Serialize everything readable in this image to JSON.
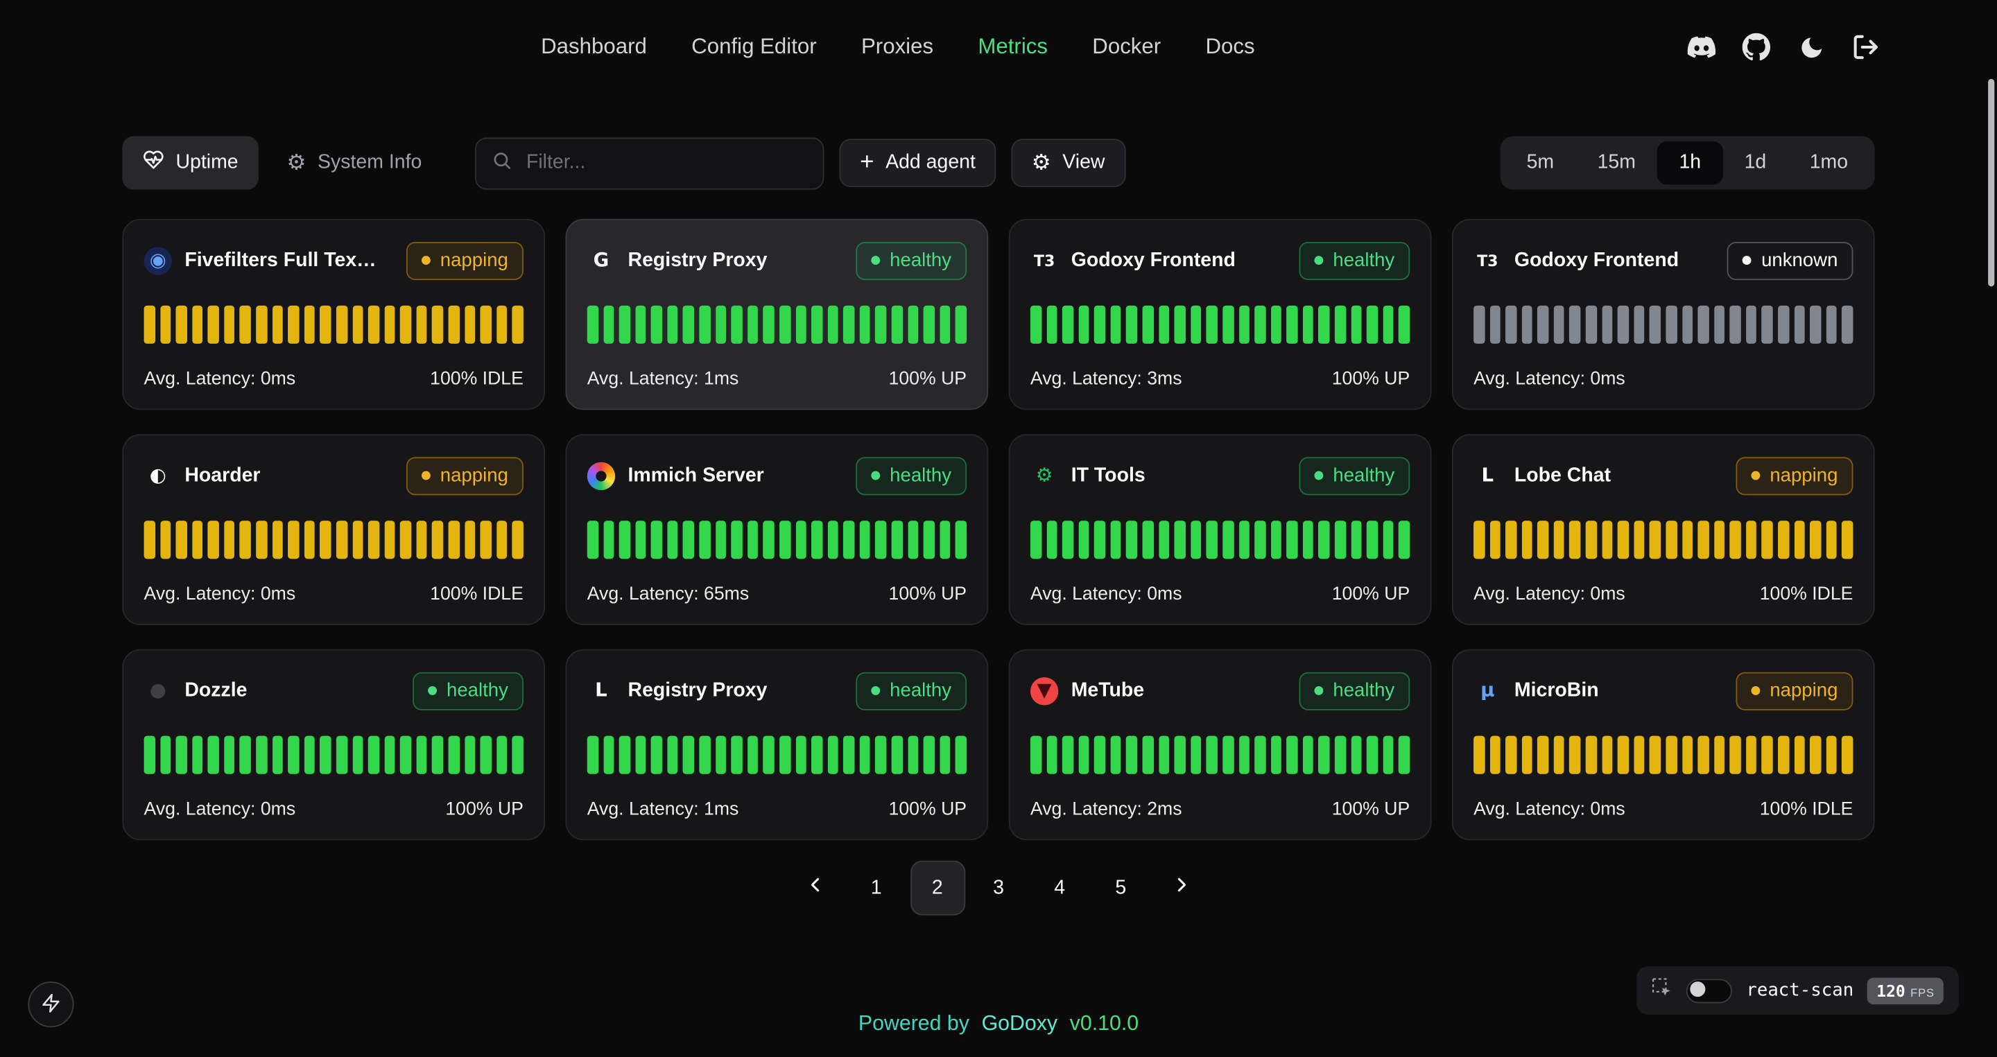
{
  "nav": {
    "items": [
      {
        "label": "Dashboard",
        "active": false
      },
      {
        "label": "Config Editor",
        "active": false
      },
      {
        "label": "Proxies",
        "active": false
      },
      {
        "label": "Metrics",
        "active": true
      },
      {
        "label": "Docker",
        "active": false
      },
      {
        "label": "Docs",
        "active": false
      }
    ],
    "active_color": "#4ade80"
  },
  "toolbar": {
    "uptime_tab": "Uptime",
    "system_info_tab": "System Info",
    "filter_placeholder": "Filter...",
    "add_agent": "Add agent",
    "view": "View",
    "ranges": [
      {
        "label": "5m",
        "active": false
      },
      {
        "label": "15m",
        "active": false
      },
      {
        "label": "1h",
        "active": true
      },
      {
        "label": "1d",
        "active": false
      },
      {
        "label": "1mo",
        "active": false
      }
    ]
  },
  "bars_per_card": 24,
  "status_styles": {
    "healthy": {
      "text": "#4ade80",
      "dot": "#4ade80",
      "bg": "rgba(34,197,94,0.10)",
      "border": "rgba(34,197,94,0.45)",
      "bar": "#32d74b"
    },
    "napping": {
      "text": "#f0b429",
      "dot": "#f0b429",
      "bg": "rgba(180,120,10,0.13)",
      "border": "rgba(202,138,4,0.55)",
      "bar": "#e3b50e"
    },
    "unknown": {
      "text": "#fafafa",
      "dot": "#fafafa",
      "bg": "transparent",
      "border": "#52525b",
      "bar": "#82868e"
    }
  },
  "cards": [
    {
      "title": "Fivefilters Full Tex…",
      "status": "napping",
      "latency": "Avg. Latency: 0ms",
      "uptime": "100% IDLE",
      "highlighted": false,
      "icon": {
        "name": "fivefilters-icon",
        "glyph": "◉",
        "fg": "#60a5fa",
        "bg": "#172554",
        "round": true
      }
    },
    {
      "title": "Registry Proxy",
      "status": "healthy",
      "latency": "Avg. Latency: 1ms",
      "uptime": "100% UP",
      "highlighted": true,
      "icon": {
        "name": "registry-proxy-icon",
        "glyph": "G",
        "fg": "#fafafa"
      }
    },
    {
      "title": "Godoxy Frontend",
      "status": "healthy",
      "latency": "Avg. Latency: 3ms",
      "uptime": "100% UP",
      "highlighted": false,
      "icon": {
        "name": "godoxy-frontend-icon",
        "glyph": "T3",
        "fg": "#fafafa"
      }
    },
    {
      "title": "Godoxy Frontend",
      "status": "unknown",
      "latency": "Avg. Latency: 0ms",
      "uptime": "",
      "highlighted": false,
      "icon": {
        "name": "godoxy-frontend-icon",
        "glyph": "T3",
        "fg": "#fafafa"
      }
    },
    {
      "title": "Hoarder",
      "status": "napping",
      "latency": "Avg. Latency: 0ms",
      "uptime": "100% IDLE",
      "highlighted": false,
      "icon": {
        "name": "hoarder-icon",
        "glyph": "◐",
        "fg": "#fafafa"
      }
    },
    {
      "title": "Immich Server",
      "status": "healthy",
      "latency": "Avg. Latency: 65ms",
      "uptime": "100% UP",
      "highlighted": false,
      "icon": {
        "name": "immich-icon",
        "conic": true
      }
    },
    {
      "title": "IT Tools",
      "status": "healthy",
      "latency": "Avg. Latency: 0ms",
      "uptime": "100% UP",
      "highlighted": false,
      "icon": {
        "name": "it-tools-icon",
        "glyph": "⚙",
        "fg": "#22c55e"
      }
    },
    {
      "title": "Lobe Chat",
      "status": "napping",
      "latency": "Avg. Latency: 0ms",
      "uptime": "100% IDLE",
      "highlighted": false,
      "icon": {
        "name": "lobe-chat-icon",
        "glyph": "L",
        "fg": "#fafafa"
      }
    },
    {
      "title": "Dozzle",
      "status": "healthy",
      "latency": "Avg. Latency: 0ms",
      "uptime": "100% UP",
      "highlighted": false,
      "icon": {
        "name": "dozzle-icon",
        "glyph": "●",
        "fg": "#3f3f46"
      }
    },
    {
      "title": "Registry Proxy",
      "status": "healthy",
      "latency": "Avg. Latency: 1ms",
      "uptime": "100% UP",
      "highlighted": false,
      "icon": {
        "name": "registry-proxy-icon",
        "glyph": "L",
        "fg": "#fafafa"
      }
    },
    {
      "title": "MeTube",
      "status": "healthy",
      "latency": "Avg. Latency: 2ms",
      "uptime": "100% UP",
      "highlighted": false,
      "icon": {
        "name": "metube-icon",
        "glyph": "▼",
        "fg": "#450a0a",
        "bg": "#ef4444",
        "round": true
      }
    },
    {
      "title": "MicroBin",
      "status": "napping",
      "latency": "Avg. Latency: 0ms",
      "uptime": "100% IDLE",
      "highlighted": false,
      "icon": {
        "name": "microbin-icon",
        "glyph": "μ",
        "fg": "#60a5fa"
      }
    }
  ],
  "pagination": {
    "pages": [
      "1",
      "2",
      "3",
      "4",
      "5"
    ],
    "active": "2"
  },
  "footer": {
    "powered_by": "Powered by",
    "brand": "GoDoxy",
    "version": "v0.10.0"
  },
  "react_scan": {
    "label": "react-scan",
    "fps": "120",
    "fps_unit": "FPS"
  }
}
